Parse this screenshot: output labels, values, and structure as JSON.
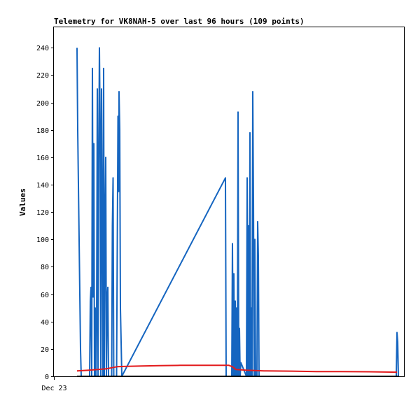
{
  "chart_data": {
    "type": "line",
    "title": "Telemetry for VK8NAH-5 over last 96 hours (109 points)",
    "ylabel": "Values",
    "xlabel": "",
    "ylim": [
      0,
      255
    ],
    "yticks": [
      0,
      20,
      40,
      60,
      80,
      100,
      120,
      140,
      160,
      180,
      200,
      220,
      240
    ],
    "xlim": [
      0,
      100
    ],
    "xtick_labels": [
      {
        "label": "Dec 23",
        "x": 0
      }
    ],
    "grid": false,
    "series": [
      {
        "color": "#1565c0",
        "points": [
          [
            6.6,
            240
          ],
          [
            6.8,
            180
          ],
          [
            7.0,
            140
          ],
          [
            7.2,
            100
          ],
          [
            7.4,
            60
          ],
          [
            7.6,
            20
          ],
          [
            7.8,
            0
          ],
          [
            10.2,
            0
          ],
          [
            10.4,
            55
          ],
          [
            10.6,
            65
          ],
          [
            10.8,
            0
          ],
          [
            11.0,
            225
          ],
          [
            11.2,
            58
          ],
          [
            11.4,
            170
          ],
          [
            11.6,
            0
          ],
          [
            11.8,
            50
          ],
          [
            12.0,
            0
          ],
          [
            12.2,
            40
          ],
          [
            12.4,
            210
          ],
          [
            12.6,
            0
          ],
          [
            12.8,
            155
          ],
          [
            13.0,
            240
          ],
          [
            13.2,
            180
          ],
          [
            13.4,
            0
          ],
          [
            13.6,
            210
          ],
          [
            13.8,
            120
          ],
          [
            14.0,
            0
          ],
          [
            14.2,
            225
          ],
          [
            14.4,
            0
          ],
          [
            14.6,
            113
          ],
          [
            14.8,
            160
          ],
          [
            15.0,
            0
          ],
          [
            15.2,
            56
          ],
          [
            15.4,
            65
          ],
          [
            15.6,
            0
          ],
          [
            16.3,
            0
          ],
          [
            16.5,
            0
          ],
          [
            16.7,
            110
          ],
          [
            16.9,
            145
          ],
          [
            17.1,
            0
          ],
          [
            17.9,
            0
          ],
          [
            18.3,
            190
          ],
          [
            18.5,
            135
          ],
          [
            18.6,
            208
          ],
          [
            18.8,
            180
          ],
          [
            19.0,
            50
          ],
          [
            19.2,
            25
          ],
          [
            19.4,
            0
          ],
          [
            49.0,
            145
          ],
          [
            49.2,
            0
          ],
          [
            50.8,
            0
          ],
          [
            51.0,
            97
          ],
          [
            51.2,
            0
          ],
          [
            51.4,
            75
          ],
          [
            51.6,
            0
          ],
          [
            51.8,
            55
          ],
          [
            52.0,
            0
          ],
          [
            52.2,
            50
          ],
          [
            52.4,
            0
          ],
          [
            52.6,
            193
          ],
          [
            52.8,
            0
          ],
          [
            53.0,
            35
          ],
          [
            53.2,
            0
          ],
          [
            53.4,
            10
          ],
          [
            55.0,
            0
          ],
          [
            55.2,
            145
          ],
          [
            55.4,
            0
          ],
          [
            55.6,
            110
          ],
          [
            55.8,
            0
          ],
          [
            56.0,
            178
          ],
          [
            56.2,
            0
          ],
          [
            56.4,
            50
          ],
          [
            56.6,
            0
          ],
          [
            56.8,
            208
          ],
          [
            57.0,
            130
          ],
          [
            57.2,
            0
          ],
          [
            57.4,
            100
          ],
          [
            57.6,
            0
          ],
          [
            58.0,
            0
          ],
          [
            58.2,
            113
          ],
          [
            58.4,
            88
          ],
          [
            58.6,
            0
          ],
          [
            59.0,
            0
          ],
          [
            97.8,
            0
          ],
          [
            98.0,
            32
          ],
          [
            98.2,
            25
          ],
          [
            98.4,
            0
          ]
        ]
      },
      {
        "color": "#e31a1c",
        "points": [
          [
            6.6,
            4
          ],
          [
            10,
            4.5
          ],
          [
            15,
            5.5
          ],
          [
            18,
            7
          ],
          [
            20,
            7.2
          ],
          [
            25,
            7.5
          ],
          [
            30,
            7.8
          ],
          [
            36,
            8
          ],
          [
            44,
            8
          ],
          [
            50,
            8
          ],
          [
            51,
            7
          ],
          [
            52,
            5
          ],
          [
            55,
            4.5
          ],
          [
            60,
            4
          ],
          [
            68,
            3.8
          ],
          [
            75,
            3.5
          ],
          [
            82,
            3.4
          ],
          [
            90,
            3.3
          ],
          [
            98,
            3
          ]
        ]
      },
      {
        "color": "#000000",
        "points": [
          [
            6.6,
            0
          ],
          [
            98.5,
            0
          ]
        ]
      }
    ]
  }
}
